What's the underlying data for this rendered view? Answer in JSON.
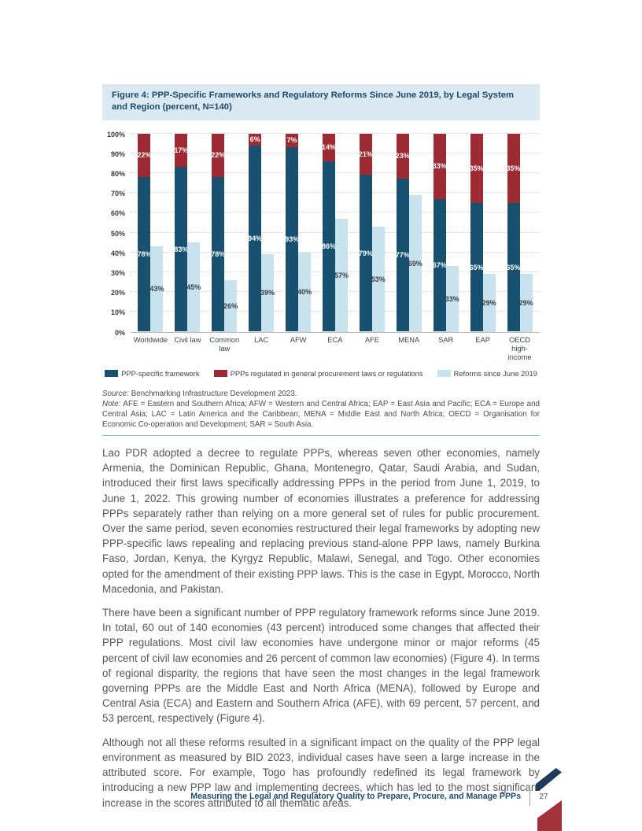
{
  "figure": {
    "title": "Figure 4: PPP-Specific Frameworks and Regulatory Reforms Since June 2019, by Legal System and Region (percent, N=140)",
    "source_label": "Source:",
    "source_text": "Benchmarking Infrastructure Development 2023.",
    "note_label": "Note:",
    "note_text": "AFE = Eastern and Southern Africa; AFW = Western and Central Africa; EAP = East Asia and Pacific; ECA = Europe and Central Asia; LAC = Latin America and the Caribbean; MENA = Middle East and North Africa; OECD = Organisation for Economic Co-operation and Development; SAR = South Asia."
  },
  "chart_data": {
    "type": "bar",
    "title": "Figure 4: PPP-Specific Frameworks and Regulatory Reforms Since June 2019, by Legal System and Region (percent, N=140)",
    "categories": [
      "Worldwide",
      "Civil law",
      "Common law",
      "LAC",
      "AFW",
      "ECA",
      "AFE",
      "MENA",
      "SAR",
      "EAP",
      "OECD high-income"
    ],
    "series": [
      {
        "name": "PPP-specific framework",
        "color": "#17516f",
        "role": "stack-bottom",
        "values": [
          78,
          83,
          78,
          94,
          93,
          86,
          79,
          77,
          67,
          65,
          65
        ]
      },
      {
        "name": "PPPs regulated in general procurement laws or regulations",
        "color": "#9e2b33",
        "role": "stack-top",
        "values": [
          22,
          17,
          22,
          6,
          7,
          14,
          21,
          23,
          33,
          35,
          35
        ]
      },
      {
        "name": "Reforms since June 2019",
        "color": "#c8e3ee",
        "role": "adjacent-bar",
        "values": [
          43,
          45,
          26,
          39,
          40,
          57,
          53,
          69,
          33,
          29,
          29
        ]
      }
    ],
    "ylim": [
      0,
      100
    ],
    "ytick_step": 10,
    "ytick_suffix": "%",
    "value_label_suffix": "%",
    "grid": "horizontal-dotted",
    "legend_position": "bottom"
  },
  "paragraphs": [
    "Lao PDR adopted a decree to regulate PPPs, whereas seven other economies, namely Armenia, the Dominican Republic, Ghana, Montenegro, Qatar, Saudi Arabia, and Sudan, introduced their first laws specifically addressing PPPs in the period from June 1, 2019, to June 1, 2022. This growing number of economies illustrates a preference for addressing PPPs separately rather than relying on a more general set of rules for public procurement. Over the same period, seven economies restructured their legal frameworks by adopting new PPP-specific laws repealing and replacing previous stand-alone PPP laws, namely Burkina Faso, Jordan, Kenya, the Kyrgyz Republic, Malawi, Senegal, and Togo. Other economies opted for the amendment of their existing PPP laws. This is the case in Egypt, Morocco, North Macedonia, and Pakistan.",
    "There have been a significant number of PPP regulatory framework reforms since June 2019. In total, 60 out of 140 economies (43 percent) introduced some changes that affected their PPP regulations. Most civil law economies have undergone minor or major reforms (45 percent of civil law economies and 26 percent of common law economies) (Figure 4). In terms of regional disparity, the regions that have seen the most changes in the legal framework governing PPPs are the Middle East and North Africa (MENA), followed by Europe and Central Asia (ECA) and Eastern and Southern Africa (AFE), with 69 percent, 57 percent, and 53 percent, respectively (Figure 4).",
    "Although not all these reforms resulted in a significant impact on the quality of the PPP legal environment as measured by BID 2023, individual cases have seen a large increase in the attributed score. For example, Togo has profoundly redefined its legal framework by introducing a new PPP law and implementing decrees, which has led to the most significant increase in the scores attributed to all thematic areas."
  ],
  "footer": {
    "title": "Measuring the Legal and Regulatory Quality to Prepare, Procure, and Manage PPPs",
    "page_number": "27"
  }
}
